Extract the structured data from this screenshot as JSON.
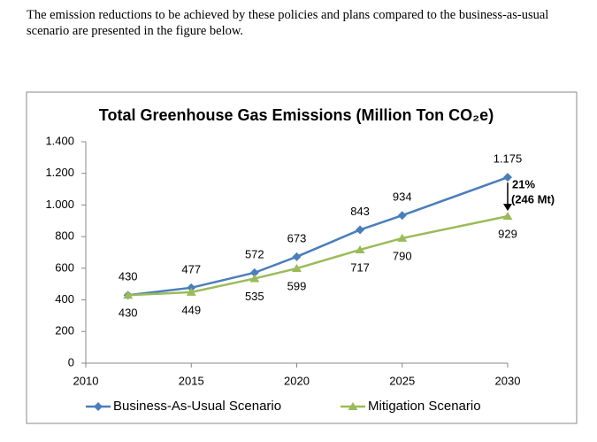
{
  "intro": "The emission reductions to be achieved by these policies and plans compared to the business-as-usual scenario are presented in the figure below.",
  "chart_data": {
    "type": "line",
    "title": "Total Greenhouse Gas Emissions (Million Ton CO₂e)",
    "x": [
      2012,
      2015,
      2018,
      2020,
      2023,
      2025,
      2030
    ],
    "series": [
      {
        "name": "Business-As-Usual Scenario",
        "color": "#4a7ebb",
        "marker": "diamond",
        "label_side": "above",
        "values": [
          430,
          477,
          572,
          673,
          843,
          934,
          1175
        ],
        "value_labels": [
          "430",
          "477",
          "572",
          "673",
          "843",
          "934",
          "1.175"
        ]
      },
      {
        "name": "Mitigation Scenario",
        "color": "#9bbb59",
        "marker": "triangle",
        "label_side": "below",
        "values": [
          430,
          449,
          535,
          599,
          717,
          790,
          929
        ]
      }
    ],
    "xlim": [
      2010,
      2030
    ],
    "xticks": [
      2010,
      2015,
      2020,
      2025,
      2030
    ],
    "ylim": [
      0,
      1400
    ],
    "yticks": [
      0,
      200,
      400,
      600,
      800,
      {
        "value": 1000,
        "label": "1.000"
      },
      {
        "value": 1200,
        "label": "1.200"
      },
      {
        "value": 1400,
        "label": "1.400"
      }
    ],
    "grid": false,
    "legend": "bottom",
    "annotations": [
      "21%",
      "(246 Mt)"
    ]
  }
}
